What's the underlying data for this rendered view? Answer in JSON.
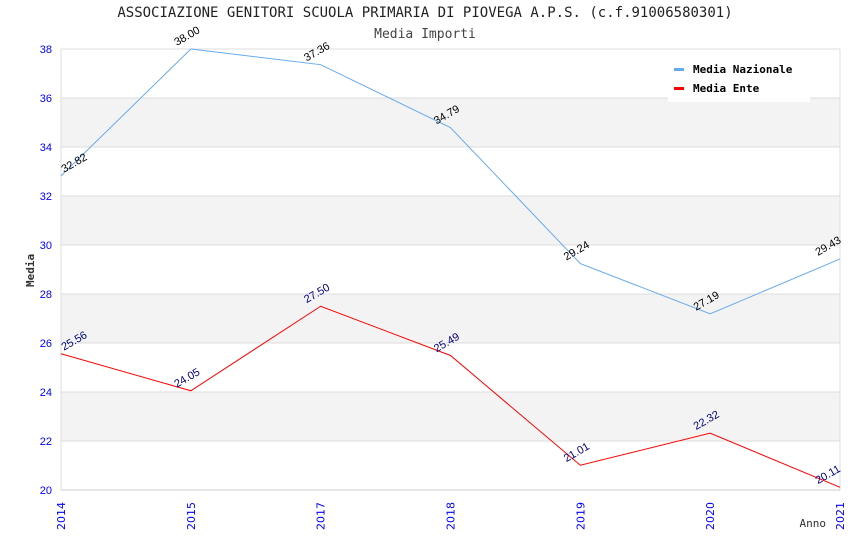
{
  "chart_data": {
    "type": "line",
    "title": "ASSOCIAZIONE GENITORI SCUOLA PRIMARIA DI PIOVEGA A.P.S. (c.f.91006580301)",
    "subtitle": "Media Importi",
    "xlabel": "Anno",
    "ylabel": "Media",
    "categories": [
      "2014",
      "2015",
      "2017",
      "2018",
      "2019",
      "2020",
      "2021"
    ],
    "ylim": [
      20,
      38
    ],
    "yticks": [
      20,
      22,
      24,
      26,
      28,
      30,
      32,
      34,
      36,
      38
    ],
    "grid": true,
    "legend_position": "top-right",
    "series": [
      {
        "name": "Media Nazionale",
        "color": "#66aaee",
        "label_color": "#000000",
        "values": [
          32.82,
          38.0,
          37.36,
          34.79,
          29.24,
          27.19,
          29.43
        ]
      },
      {
        "name": "Media Ente",
        "color": "#ff0000",
        "label_color": "#000080",
        "values": [
          25.56,
          24.05,
          27.5,
          25.49,
          21.01,
          22.32,
          20.11
        ]
      }
    ]
  }
}
